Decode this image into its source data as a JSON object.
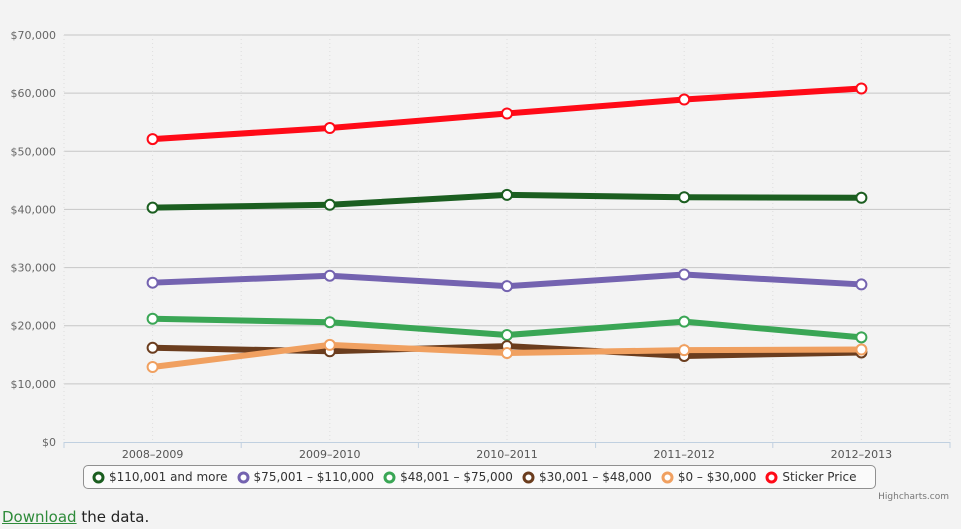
{
  "chart_data": {
    "type": "line",
    "categories": [
      "2008–2009",
      "2009–2010",
      "2010–2011",
      "2011–2012",
      "2012–2013"
    ],
    "y_tick_labels": [
      "$0",
      "$10,000",
      "$20,000",
      "$30,000",
      "$40,000",
      "$50,000",
      "$60,000",
      "$70,000"
    ],
    "ylim": [
      0,
      70000
    ],
    "grid": true,
    "legend_position": "bottom",
    "series": [
      {
        "name": "$110,001 and more",
        "color": "#1b5e20",
        "values": [
          40300,
          40800,
          42500,
          42100,
          42000
        ]
      },
      {
        "name": "$75,001 – $110,000",
        "color": "#7463b0",
        "values": [
          27400,
          28600,
          26800,
          28800,
          27100
        ]
      },
      {
        "name": "$48,001 – $75,000",
        "color": "#3aa655",
        "values": [
          21200,
          20600,
          18400,
          20700,
          18000
        ]
      },
      {
        "name": "$30,001 – $48,000",
        "color": "#6b3d1e",
        "values": [
          16200,
          15600,
          16500,
          14800,
          15400
        ]
      },
      {
        "name": "$0 – $30,000",
        "color": "#f0a060",
        "values": [
          12900,
          16700,
          15300,
          15800,
          15900
        ]
      },
      {
        "name": "Sticker Price",
        "color": "#ff0a17",
        "values": [
          52100,
          54000,
          56500,
          58900,
          60800
        ]
      }
    ]
  },
  "credits": "Highcharts.com",
  "footer": {
    "link_text": "Download",
    "rest_text": " the data."
  }
}
